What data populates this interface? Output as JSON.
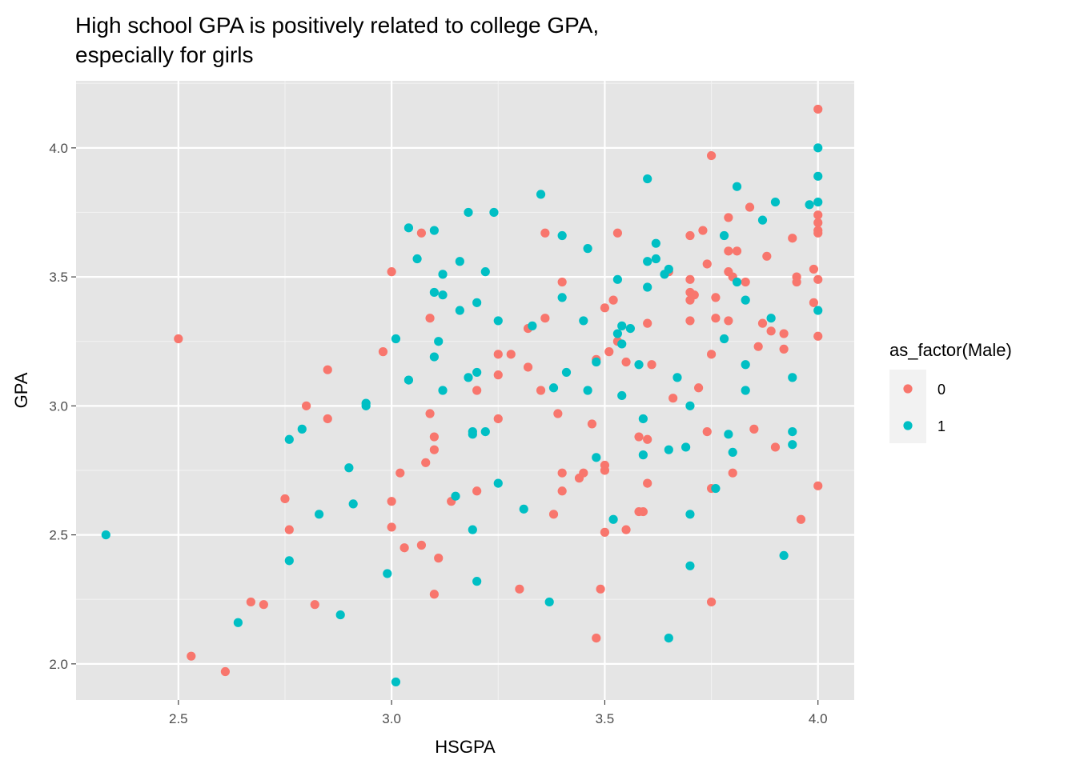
{
  "chart_data": {
    "type": "scatter",
    "title_lines": [
      "High school GPA is positively related to college GPA,",
      "especially for girls"
    ],
    "xlabel": "HSGPA",
    "ylabel": "GPA",
    "xlim": [
      2.26,
      4.085
    ],
    "ylim": [
      1.86,
      4.26
    ],
    "x_ticks": [
      {
        "v": 2.5,
        "label": "2.5"
      },
      {
        "v": 3.0,
        "label": "3.0"
      },
      {
        "v": 3.5,
        "label": "3.5"
      },
      {
        "v": 4.0,
        "label": "4.0"
      }
    ],
    "y_ticks": [
      {
        "v": 2.0,
        "label": "2.0"
      },
      {
        "v": 2.5,
        "label": "2.5"
      },
      {
        "v": 3.0,
        "label": "3.0"
      },
      {
        "v": 3.5,
        "label": "3.5"
      },
      {
        "v": 4.0,
        "label": "4.0"
      }
    ],
    "grid": true,
    "background": "#e5e5e5",
    "legend": {
      "title": "as_factor(Male)",
      "placement": "right"
    },
    "series": [
      {
        "name": "0",
        "color": "#f8766d",
        "points": [
          [
            2.5,
            3.26
          ],
          [
            2.53,
            2.03
          ],
          [
            2.61,
            1.97
          ],
          [
            2.67,
            2.24
          ],
          [
            2.7,
            2.23
          ],
          [
            2.75,
            2.64
          ],
          [
            2.76,
            2.52
          ],
          [
            2.8,
            3.0
          ],
          [
            2.82,
            2.23
          ],
          [
            2.85,
            3.14
          ],
          [
            2.85,
            2.95
          ],
          [
            2.98,
            3.21
          ],
          [
            3.0,
            3.52
          ],
          [
            3.0,
            2.63
          ],
          [
            3.0,
            2.53
          ],
          [
            3.02,
            2.74
          ],
          [
            3.03,
            2.45
          ],
          [
            3.07,
            3.67
          ],
          [
            3.07,
            2.46
          ],
          [
            3.08,
            2.78
          ],
          [
            3.09,
            3.34
          ],
          [
            3.09,
            2.97
          ],
          [
            3.1,
            2.88
          ],
          [
            3.1,
            2.83
          ],
          [
            3.1,
            2.27
          ],
          [
            3.11,
            2.41
          ],
          [
            3.14,
            2.63
          ],
          [
            3.2,
            3.06
          ],
          [
            3.2,
            2.67
          ],
          [
            3.25,
            3.2
          ],
          [
            3.25,
            3.12
          ],
          [
            3.25,
            2.95
          ],
          [
            3.28,
            3.2
          ],
          [
            3.3,
            2.29
          ],
          [
            3.32,
            3.3
          ],
          [
            3.32,
            3.15
          ],
          [
            3.35,
            3.06
          ],
          [
            3.36,
            3.67
          ],
          [
            3.36,
            3.34
          ],
          [
            3.38,
            2.58
          ],
          [
            3.39,
            2.97
          ],
          [
            3.4,
            3.48
          ],
          [
            3.4,
            2.74
          ],
          [
            3.4,
            2.67
          ],
          [
            3.44,
            2.72
          ],
          [
            3.45,
            2.74
          ],
          [
            3.47,
            2.93
          ],
          [
            3.48,
            3.18
          ],
          [
            3.48,
            2.1
          ],
          [
            3.49,
            2.29
          ],
          [
            3.5,
            3.38
          ],
          [
            3.5,
            2.77
          ],
          [
            3.5,
            2.75
          ],
          [
            3.5,
            2.51
          ],
          [
            3.51,
            3.21
          ],
          [
            3.52,
            3.41
          ],
          [
            3.53,
            3.67
          ],
          [
            3.53,
            3.25
          ],
          [
            3.55,
            3.17
          ],
          [
            3.55,
            2.52
          ],
          [
            3.58,
            2.88
          ],
          [
            3.58,
            2.59
          ],
          [
            3.59,
            2.59
          ],
          [
            3.6,
            3.32
          ],
          [
            3.6,
            2.87
          ],
          [
            3.6,
            2.7
          ],
          [
            3.61,
            3.16
          ],
          [
            3.65,
            3.52
          ],
          [
            3.66,
            3.03
          ],
          [
            3.7,
            3.66
          ],
          [
            3.7,
            3.49
          ],
          [
            3.7,
            3.44
          ],
          [
            3.7,
            3.41
          ],
          [
            3.7,
            3.33
          ],
          [
            3.71,
            3.43
          ],
          [
            3.72,
            3.07
          ],
          [
            3.73,
            3.68
          ],
          [
            3.74,
            3.55
          ],
          [
            3.74,
            2.9
          ],
          [
            3.75,
            3.97
          ],
          [
            3.75,
            3.2
          ],
          [
            3.75,
            2.68
          ],
          [
            3.75,
            2.24
          ],
          [
            3.76,
            3.42
          ],
          [
            3.76,
            3.34
          ],
          [
            3.79,
            3.73
          ],
          [
            3.79,
            3.6
          ],
          [
            3.79,
            3.52
          ],
          [
            3.79,
            3.33
          ],
          [
            3.8,
            3.5
          ],
          [
            3.8,
            2.74
          ],
          [
            3.81,
            3.6
          ],
          [
            3.83,
            3.48
          ],
          [
            3.84,
            3.77
          ],
          [
            3.85,
            2.91
          ],
          [
            3.86,
            3.23
          ],
          [
            3.87,
            3.32
          ],
          [
            3.88,
            3.58
          ],
          [
            3.89,
            3.29
          ],
          [
            3.9,
            2.84
          ],
          [
            3.92,
            3.28
          ],
          [
            3.92,
            3.22
          ],
          [
            3.94,
            3.65
          ],
          [
            3.95,
            3.5
          ],
          [
            3.95,
            3.48
          ],
          [
            3.96,
            2.56
          ],
          [
            3.99,
            3.53
          ],
          [
            3.99,
            3.4
          ],
          [
            4.0,
            4.15
          ],
          [
            4.0,
            3.74
          ],
          [
            4.0,
            3.71
          ],
          [
            4.0,
            3.68
          ],
          [
            4.0,
            3.67
          ],
          [
            4.0,
            3.49
          ],
          [
            4.0,
            3.27
          ],
          [
            4.0,
            2.69
          ]
        ]
      },
      {
        "name": "1",
        "color": "#00bfc4",
        "points": [
          [
            2.33,
            2.5
          ],
          [
            2.64,
            2.16
          ],
          [
            2.76,
            2.87
          ],
          [
            2.76,
            2.4
          ],
          [
            2.79,
            2.91
          ],
          [
            2.83,
            2.58
          ],
          [
            2.88,
            2.19
          ],
          [
            2.9,
            2.76
          ],
          [
            2.91,
            2.62
          ],
          [
            2.94,
            3.01
          ],
          [
            2.94,
            3.0
          ],
          [
            2.99,
            2.35
          ],
          [
            3.01,
            3.26
          ],
          [
            3.01,
            1.93
          ],
          [
            3.04,
            3.69
          ],
          [
            3.04,
            3.1
          ],
          [
            3.06,
            3.57
          ],
          [
            3.1,
            3.68
          ],
          [
            3.1,
            3.44
          ],
          [
            3.1,
            3.19
          ],
          [
            3.11,
            3.25
          ],
          [
            3.12,
            3.51
          ],
          [
            3.12,
            3.43
          ],
          [
            3.12,
            3.06
          ],
          [
            3.15,
            2.65
          ],
          [
            3.16,
            3.56
          ],
          [
            3.16,
            3.37
          ],
          [
            3.18,
            3.75
          ],
          [
            3.18,
            3.11
          ],
          [
            3.19,
            2.9
          ],
          [
            3.19,
            2.89
          ],
          [
            3.19,
            2.52
          ],
          [
            3.2,
            3.4
          ],
          [
            3.2,
            3.13
          ],
          [
            3.2,
            2.32
          ],
          [
            3.22,
            3.52
          ],
          [
            3.22,
            2.9
          ],
          [
            3.24,
            3.75
          ],
          [
            3.25,
            3.33
          ],
          [
            3.25,
            2.7
          ],
          [
            3.31,
            2.6
          ],
          [
            3.33,
            3.31
          ],
          [
            3.35,
            3.82
          ],
          [
            3.37,
            2.24
          ],
          [
            3.38,
            3.07
          ],
          [
            3.4,
            3.66
          ],
          [
            3.4,
            3.42
          ],
          [
            3.41,
            3.13
          ],
          [
            3.45,
            3.33
          ],
          [
            3.46,
            3.61
          ],
          [
            3.46,
            3.06
          ],
          [
            3.48,
            3.17
          ],
          [
            3.48,
            2.8
          ],
          [
            3.52,
            2.56
          ],
          [
            3.53,
            3.49
          ],
          [
            3.53,
            3.28
          ],
          [
            3.54,
            3.31
          ],
          [
            3.54,
            3.24
          ],
          [
            3.54,
            3.04
          ],
          [
            3.56,
            3.3
          ],
          [
            3.58,
            3.16
          ],
          [
            3.59,
            2.95
          ],
          [
            3.59,
            2.81
          ],
          [
            3.6,
            3.88
          ],
          [
            3.6,
            3.56
          ],
          [
            3.6,
            3.46
          ],
          [
            3.62,
            3.63
          ],
          [
            3.62,
            3.57
          ],
          [
            3.64,
            3.51
          ],
          [
            3.65,
            3.53
          ],
          [
            3.65,
            2.83
          ],
          [
            3.65,
            2.1
          ],
          [
            3.67,
            3.11
          ],
          [
            3.69,
            2.84
          ],
          [
            3.7,
            3.0
          ],
          [
            3.7,
            2.58
          ],
          [
            3.7,
            2.38
          ],
          [
            3.76,
            2.68
          ],
          [
            3.78,
            3.66
          ],
          [
            3.78,
            3.26
          ],
          [
            3.79,
            2.89
          ],
          [
            3.8,
            2.82
          ],
          [
            3.81,
            3.85
          ],
          [
            3.81,
            3.48
          ],
          [
            3.83,
            3.41
          ],
          [
            3.83,
            3.16
          ],
          [
            3.83,
            3.06
          ],
          [
            3.87,
            3.72
          ],
          [
            3.89,
            3.34
          ],
          [
            3.9,
            3.79
          ],
          [
            3.92,
            2.42
          ],
          [
            3.94,
            3.11
          ],
          [
            3.94,
            2.9
          ],
          [
            3.94,
            2.85
          ],
          [
            3.98,
            3.78
          ],
          [
            4.0,
            4.0
          ],
          [
            4.0,
            3.89
          ],
          [
            4.0,
            3.79
          ],
          [
            4.0,
            3.37
          ]
        ]
      }
    ]
  }
}
